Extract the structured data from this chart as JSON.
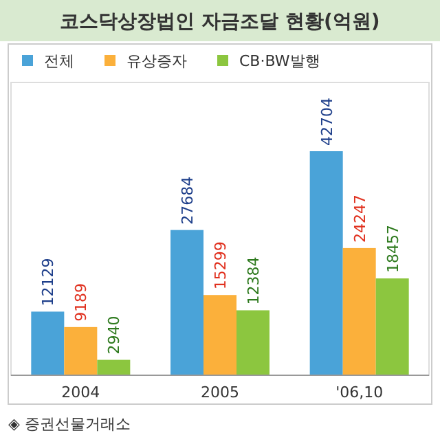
{
  "chart_data": {
    "type": "bar",
    "title": "코스닥상장법인 자금조달 현황(억원)",
    "categories": [
      "2004",
      "2005",
      "'06,10"
    ],
    "series": [
      {
        "name": "전체",
        "color": "#4aa3d8",
        "values": [
          12129,
          27684,
          42704
        ]
      },
      {
        "name": "유상증자",
        "color": "#fbb03b",
        "values": [
          9189,
          15299,
          24247
        ]
      },
      {
        "name": "CB·BW발행",
        "color": "#8cc63f",
        "values": [
          2940,
          12384,
          18457
        ]
      }
    ],
    "data_labels": true,
    "legend": "top left",
    "annotations": [
      "◈ 증권선물거래소"
    ]
  }
}
